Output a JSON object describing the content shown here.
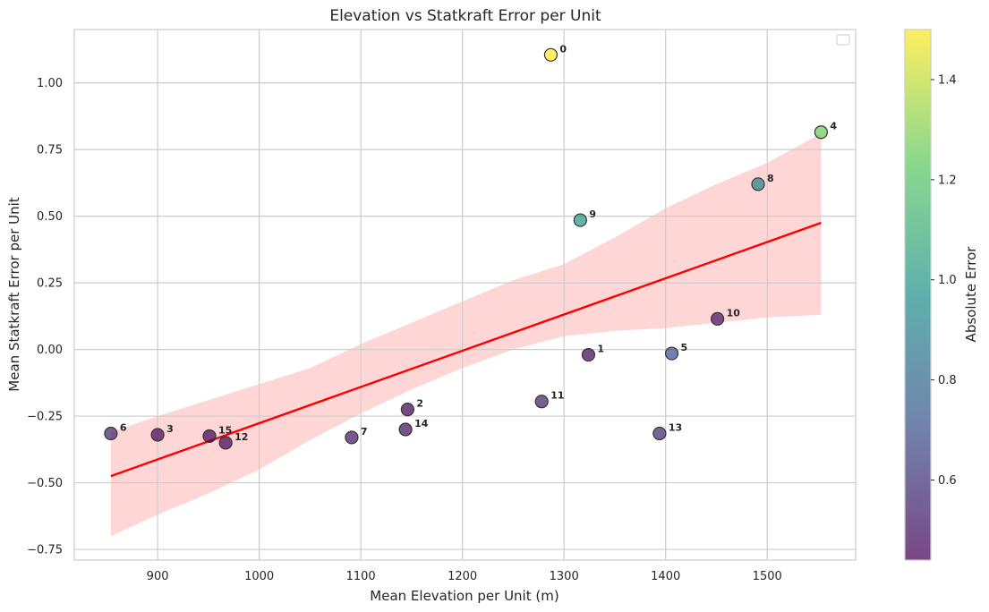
{
  "chart_data": {
    "type": "scatter",
    "title": "Elevation vs Statkraft Error per Unit",
    "xlabel": "Mean Elevation per Unit (m)",
    "ylabel": "Mean Statkraft Error per Unit",
    "xlim": [
      818,
      1587
    ],
    "ylim": [
      -0.79,
      1.2
    ],
    "x_ticks": [
      900,
      1000,
      1100,
      1200,
      1300,
      1400,
      1500
    ],
    "y_ticks": [
      -0.75,
      -0.5,
      -0.25,
      0.0,
      0.25,
      0.5,
      0.75,
      1.0
    ],
    "y_tick_labels": [
      "−0.75",
      "−0.50",
      "−0.25",
      "0.00",
      "0.25",
      "0.50",
      "0.75",
      "1.00"
    ],
    "grid": true,
    "legend": "top-right (empty)",
    "points": [
      {
        "label": "0",
        "x": 1287,
        "y": 1.105,
        "abs_error": 1.5
      },
      {
        "label": "1",
        "x": 1324,
        "y": -0.02,
        "abs_error": 0.46
      },
      {
        "label": "2",
        "x": 1146,
        "y": -0.225,
        "abs_error": 0.45
      },
      {
        "label": "3",
        "x": 900,
        "y": -0.32,
        "abs_error": 0.45
      },
      {
        "label": "4",
        "x": 1553,
        "y": 0.815,
        "abs_error": 1.26
      },
      {
        "label": "5",
        "x": 1406,
        "y": -0.015,
        "abs_error": 0.7
      },
      {
        "label": "6",
        "x": 854,
        "y": -0.315,
        "abs_error": 0.55
      },
      {
        "label": "7",
        "x": 1091,
        "y": -0.33,
        "abs_error": 0.52
      },
      {
        "label": "8",
        "x": 1491,
        "y": 0.62,
        "abs_error": 0.9
      },
      {
        "label": "9",
        "x": 1316,
        "y": 0.485,
        "abs_error": 1.0
      },
      {
        "label": "10",
        "x": 1451,
        "y": 0.115,
        "abs_error": 0.5
      },
      {
        "label": "11",
        "x": 1278,
        "y": -0.195,
        "abs_error": 0.55
      },
      {
        "label": "12",
        "x": 967,
        "y": -0.35,
        "abs_error": 0.45
      },
      {
        "label": "13",
        "x": 1394,
        "y": -0.315,
        "abs_error": 0.57
      },
      {
        "label": "14",
        "x": 1144,
        "y": -0.3,
        "abs_error": 0.5
      },
      {
        "label": "15",
        "x": 951,
        "y": -0.325,
        "abs_error": 0.45
      }
    ],
    "regression_line": {
      "x": [
        854,
        1553
      ],
      "y": [
        -0.475,
        0.475
      ],
      "color": "#ff0000"
    },
    "confidence_band": {
      "x": [
        854,
        900,
        950,
        1000,
        1050,
        1100,
        1150,
        1200,
        1250,
        1300,
        1350,
        1400,
        1450,
        1500,
        1553
      ],
      "upper": [
        -0.31,
        -0.25,
        -0.19,
        -0.13,
        -0.07,
        0.02,
        0.1,
        0.18,
        0.26,
        0.32,
        0.42,
        0.53,
        0.62,
        0.7,
        0.81
      ],
      "lower": [
        -0.7,
        -0.62,
        -0.54,
        -0.45,
        -0.34,
        -0.24,
        -0.15,
        -0.07,
        0.0,
        0.05,
        0.07,
        0.08,
        0.1,
        0.12,
        0.13
      ],
      "color": "#ffd6d6"
    },
    "colorbar": {
      "label": "Absolute Error",
      "min": 0.44,
      "max": 1.5,
      "ticks": [
        0.6,
        0.8,
        1.0,
        1.2,
        1.4
      ],
      "tick_labels": [
        "0.6",
        "0.8",
        "1.0",
        "1.2",
        "1.4"
      ],
      "colormap": "viridis",
      "colors": [
        "#440154",
        "#3b528b",
        "#21918c",
        "#5ec962",
        "#fde725"
      ]
    }
  }
}
